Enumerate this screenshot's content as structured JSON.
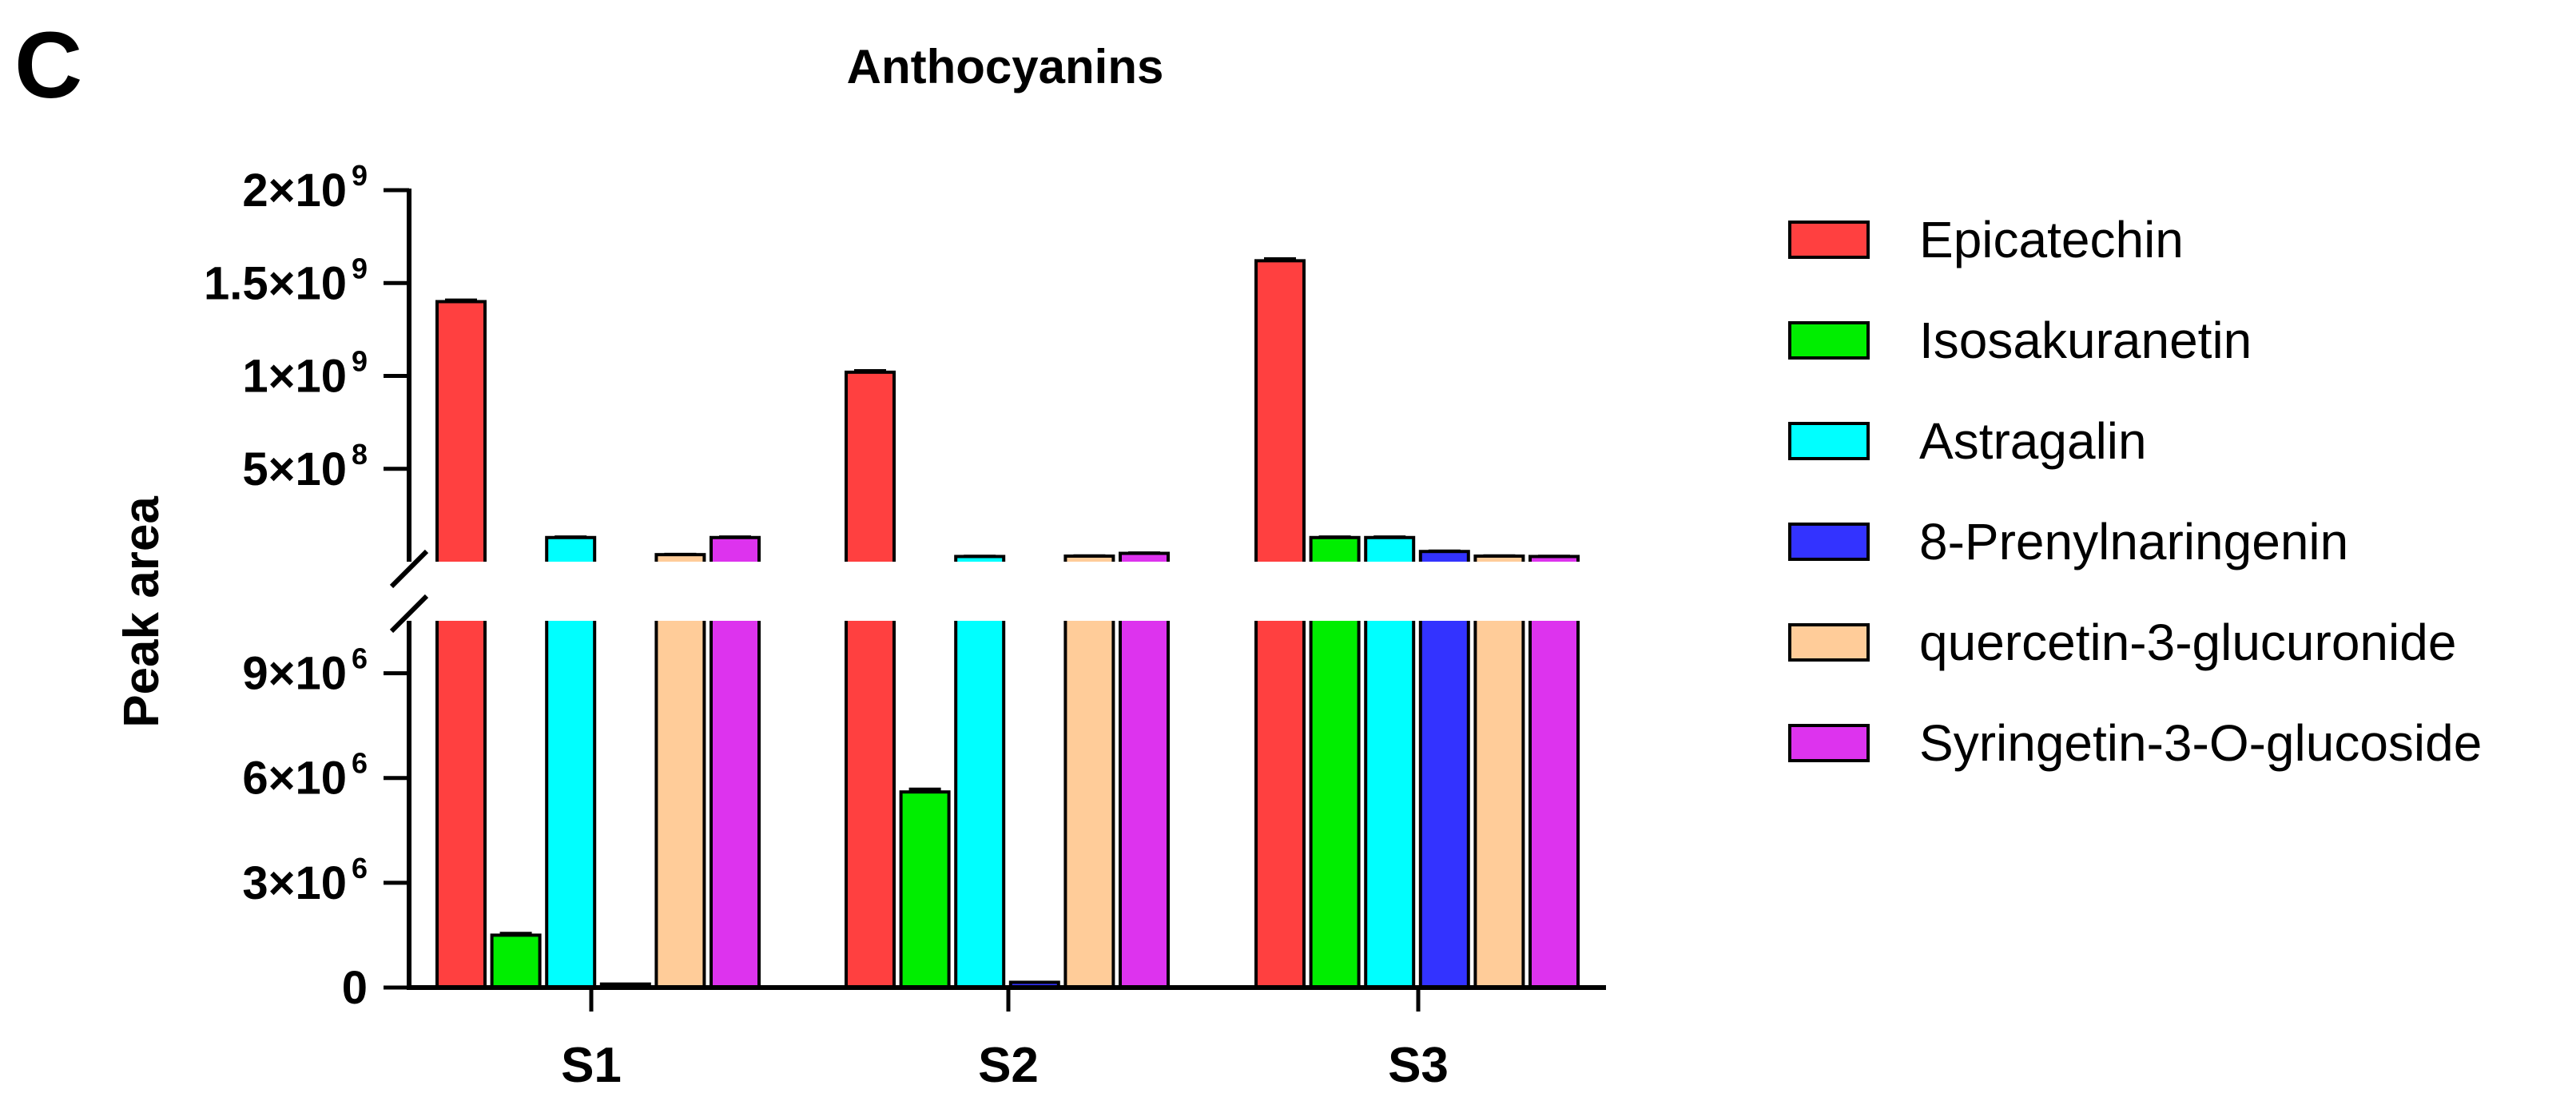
{
  "panel_label": "C",
  "chart_data": {
    "type": "bar",
    "title": "Anthocyanins",
    "xlabel": "",
    "ylabel": "Peak area",
    "categories": [
      "S1",
      "S2",
      "S3"
    ],
    "axis_break": {
      "lower_range": [
        0,
        10500000
      ],
      "upper_range": [
        0,
        2000000000
      ]
    },
    "lower_ticks": [
      {
        "value": 0,
        "mantissa": "0",
        "exp": ""
      },
      {
        "value": 3000000,
        "mantissa": "3×10",
        "exp": "6"
      },
      {
        "value": 6000000,
        "mantissa": "6×10",
        "exp": "6"
      },
      {
        "value": 9000000,
        "mantissa": "9×10",
        "exp": "6"
      }
    ],
    "upper_ticks": [
      {
        "value": 500000000,
        "mantissa": "5×10",
        "exp": "8"
      },
      {
        "value": 1000000000,
        "mantissa": "1×10",
        "exp": "9"
      },
      {
        "value": 1500000000,
        "mantissa": "1.5×10",
        "exp": "9"
      },
      {
        "value": 2000000000,
        "mantissa": "2×10",
        "exp": "9"
      }
    ],
    "series": [
      {
        "name": "Epicatechin",
        "color": "#ff4040",
        "values": [
          1400000000,
          1020000000,
          1620000000
        ],
        "errors": [
          8000000,
          8000000,
          10000000
        ]
      },
      {
        "name": "Isosakuranetin",
        "color": "#00ee00",
        "values": [
          1500000,
          5600000,
          130000000
        ],
        "errors": [
          50000,
          80000,
          3000000
        ]
      },
      {
        "name": "Astragalin",
        "color": "#00ffff",
        "values": [
          130000000,
          28000000,
          130000000
        ],
        "errors": [
          3000000,
          1000000,
          3000000
        ]
      },
      {
        "name": "8-Prenylnaringenin",
        "color": "#3333ff",
        "values": [
          100000,
          150000,
          55000000
        ],
        "errors": [
          10000,
          10000,
          2000000
        ]
      },
      {
        "name": "quercetin-3-glucuronide",
        "color": "#ffcc99",
        "values": [
          38000000,
          30000000,
          30000000
        ],
        "errors": [
          1000000,
          1000000,
          1000000
        ]
      },
      {
        "name": "Syringetin-3-O-glucoside",
        "color": "#dd33ee",
        "values": [
          130000000,
          45000000,
          28000000
        ],
        "errors": [
          3000000,
          2000000,
          1000000
        ]
      }
    ],
    "legend_position": "right",
    "grid": false
  }
}
